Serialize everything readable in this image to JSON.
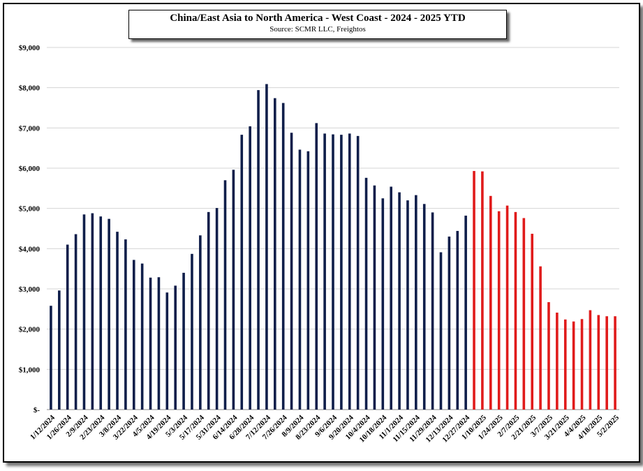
{
  "chart_data": {
    "type": "bar",
    "title": "China/East Asia to North America - West Coast - 2024 - 2025 YTD",
    "subtitle": "Source: SCMR LLC, Freightos",
    "ylim": [
      0,
      9000
    ],
    "yticks": [
      0,
      1000,
      2000,
      3000,
      4000,
      5000,
      6000,
      7000,
      8000,
      9000
    ],
    "ytick_labels": [
      "$-",
      "$1,000",
      "$2,000",
      "$3,000",
      "$4,000",
      "$5,000",
      "$6,000",
      "$7,000",
      "$8,000",
      "$9,000"
    ],
    "grid": true,
    "colors": {
      "2024": "#0f1e4a",
      "2025": "#e01b1b"
    },
    "x_labels": [
      "1/12/2024",
      "1/26/2024",
      "2/9/2024",
      "2/23/2024",
      "3/8/2024",
      "3/22/2024",
      "4/5/2024",
      "4/19/2024",
      "5/3/2024",
      "5/17/2024",
      "5/31/2024",
      "6/14/2024",
      "6/28/2024",
      "7/12/2024",
      "7/26/2024",
      "8/9/2024",
      "8/23/2024",
      "9/6/2024",
      "9/20/2024",
      "10/4/2024",
      "10/18/2024",
      "11/1/2024",
      "11/15/2024",
      "11/29/2024",
      "12/13/2024",
      "12/27/2024",
      "1/10/2025",
      "1/24/2025",
      "2/7/2025",
      "2/21/2025",
      "3/7/2025",
      "3/21/2025",
      "4/4/2025",
      "4/18/2025",
      "5/2/2025"
    ],
    "series": [
      {
        "year": "2024",
        "values": [
          2580,
          2960,
          4100,
          4360,
          4850,
          4880,
          4800,
          4740,
          4420,
          4230,
          3720,
          3630,
          3280,
          3290,
          2910,
          3080,
          3400,
          3870,
          4330,
          4910,
          5010,
          5700,
          5960,
          6830,
          7040,
          7940,
          8090,
          7740,
          7620,
          6880,
          6460,
          6420,
          7120,
          6860,
          6840,
          6830,
          6860,
          6800,
          5760,
          5570,
          5250,
          5540,
          5400,
          5200,
          5330,
          5110,
          4900,
          3910,
          4300,
          4440,
          4820
        ]
      },
      {
        "year": "2025",
        "values": [
          5930,
          5920,
          5310,
          4930,
          5070,
          4910,
          4760,
          4370,
          3560,
          2670,
          2410,
          2240,
          2190,
          2250,
          2470,
          2350,
          2320,
          2320
        ]
      }
    ]
  }
}
